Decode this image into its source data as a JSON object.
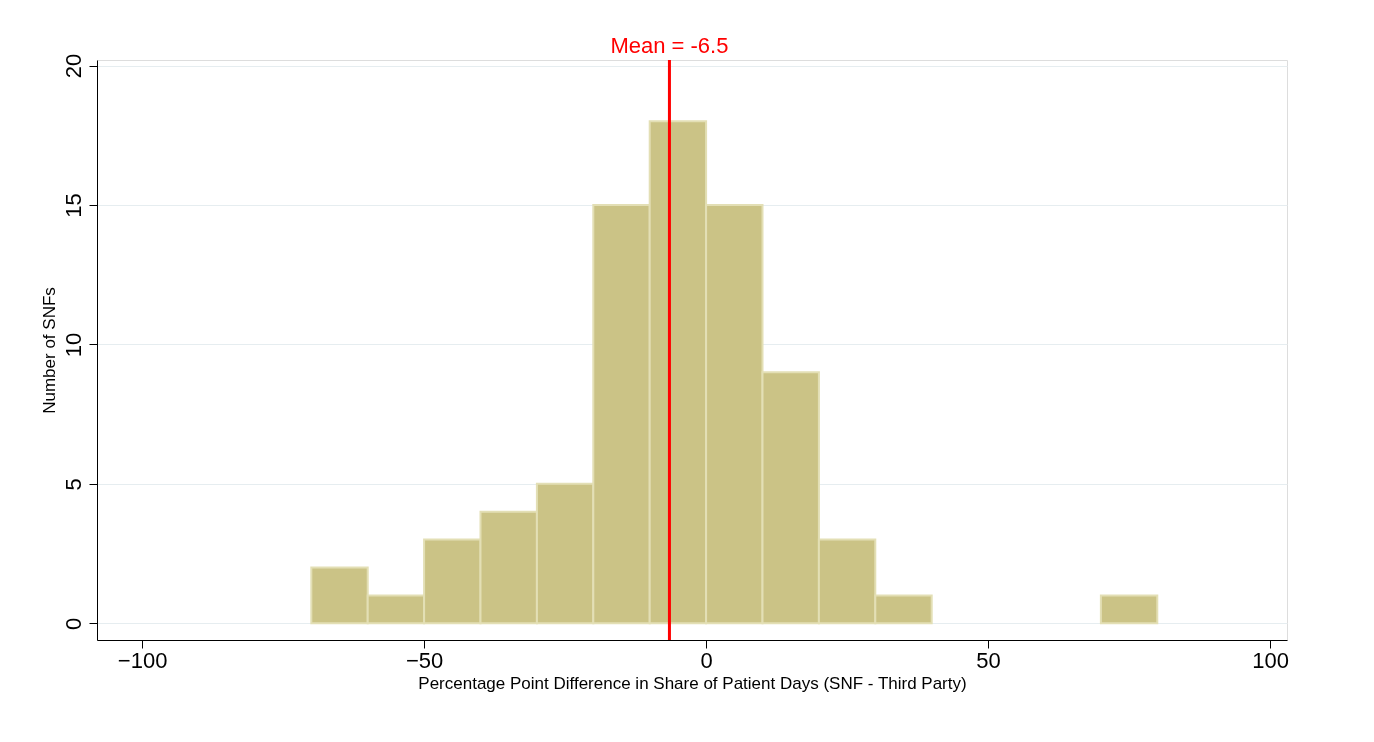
{
  "chart_data": {
    "type": "histogram",
    "xlabel": "Percentage Point Difference in Share of Patient Days (SNF - Third Party)",
    "ylabel": "Number of SNFs",
    "bins": [
      -70,
      -60,
      -50,
      -40,
      -30,
      -20,
      -10,
      0,
      10,
      20,
      30,
      40,
      50,
      60,
      70,
      80
    ],
    "values": [
      2,
      1,
      3,
      4,
      5,
      15,
      18,
      15,
      9,
      3,
      1,
      0,
      0,
      0,
      1
    ],
    "color": "#cbc386",
    "xlim": [
      -108,
      103
    ],
    "xticks": [
      -100,
      -50,
      0,
      50,
      100
    ],
    "ylim": [
      -0.6,
      20.2
    ],
    "yticks": [
      0,
      5,
      10,
      15,
      20
    ],
    "grid": "y",
    "ref_lines": [
      {
        "axis": "x",
        "value": -6.5,
        "label": "Mean = -6.5",
        "color": "#ff0000"
      }
    ]
  }
}
